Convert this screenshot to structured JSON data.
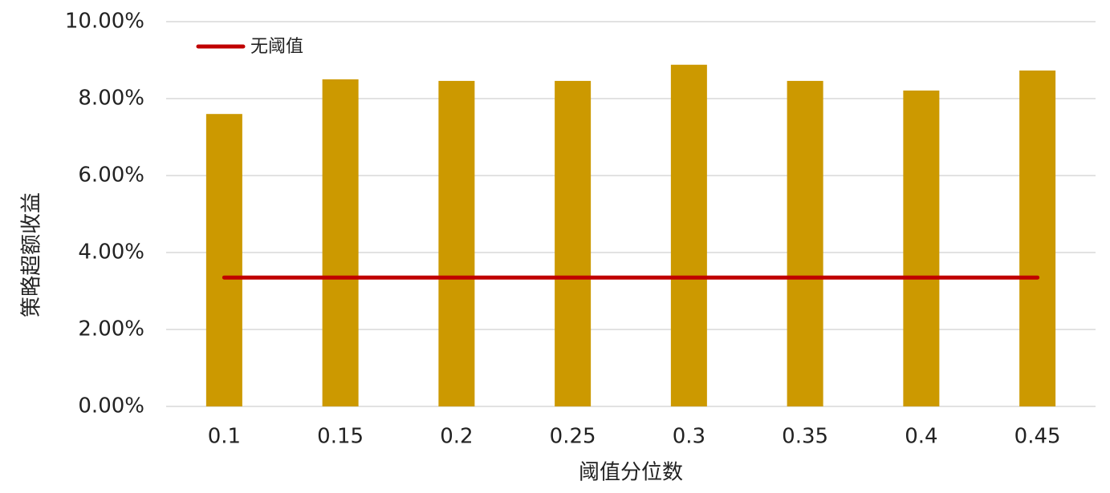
{
  "chart_data": {
    "type": "bar",
    "x_label": "阈值分位数",
    "y_label": "策略超额收益",
    "categories": [
      "0.1",
      "0.15",
      "0.2",
      "0.25",
      "0.3",
      "0.35",
      "0.4",
      "0.45"
    ],
    "values": [
      7.6,
      8.5,
      8.46,
      8.46,
      8.88,
      8.46,
      8.21,
      8.73
    ],
    "color": "#cc9900",
    "series": [
      {
        "type": "line",
        "name": "无阈值",
        "color": "#c00000",
        "values": [
          3.35,
          3.35,
          3.35,
          3.35,
          3.35,
          3.35,
          3.35,
          3.35
        ]
      }
    ],
    "ylim": [
      0,
      10
    ],
    "yticks": [
      {
        "value": 0,
        "label": "0.00%"
      },
      {
        "value": 2,
        "label": "2.00%"
      },
      {
        "value": 4,
        "label": "4.00%"
      },
      {
        "value": 6,
        "label": "6.00%"
      },
      {
        "value": 8,
        "label": "8.00%"
      },
      {
        "value": 10,
        "label": "10.00%"
      }
    ],
    "grid": true,
    "legend": "top-left"
  }
}
